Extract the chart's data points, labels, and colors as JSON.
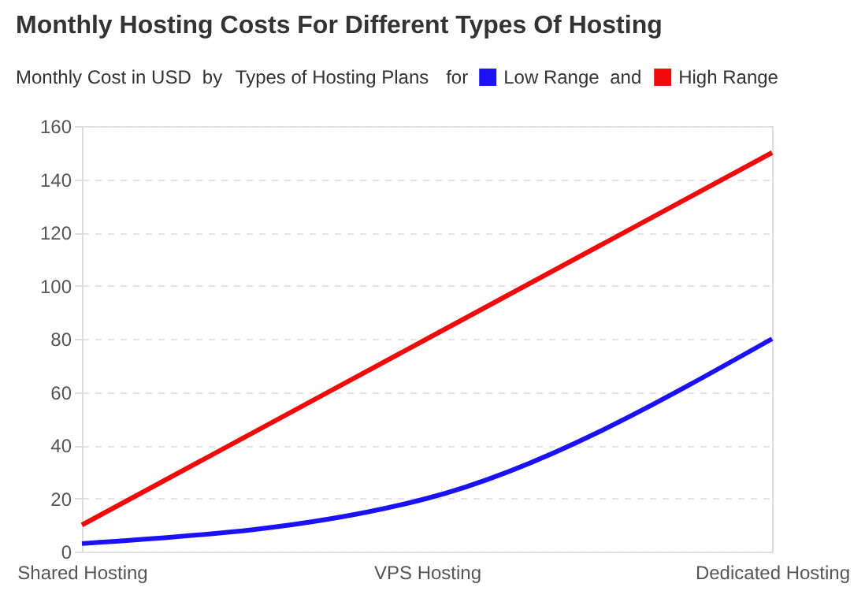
{
  "chart_data": {
    "type": "line",
    "title": "Monthly Hosting Costs For Different Types Of Hosting",
    "ylabel": "Monthly Cost in USD",
    "xlabel": "Types of Hosting Plans",
    "annotations": [
      "by",
      "for",
      "and"
    ],
    "categories": [
      "Shared Hosting",
      "VPS Hosting",
      "Dedicated Hosting"
    ],
    "series": [
      {
        "name": "Low Range",
        "color": "#1a12f5",
        "values": [
          3,
          20,
          80
        ]
      },
      {
        "name": "High Range",
        "color": "#f00a0a",
        "values": [
          10,
          80,
          150
        ]
      }
    ],
    "ylim": [
      0,
      160
    ],
    "yticks": [
      0,
      20,
      40,
      60,
      80,
      100,
      120,
      140,
      160
    ],
    "grid": "y",
    "legend": "top",
    "marker": "none",
    "line_style": "solid"
  }
}
